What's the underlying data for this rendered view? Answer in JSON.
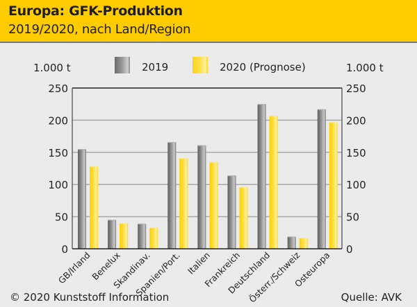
{
  "header": {
    "title": "Europa: GFK-Produktion",
    "subtitle": "2019/2020, nach Land/Region"
  },
  "colors": {
    "header_bg": "#ffcc00",
    "series_2019": "#8a8a8a",
    "series_2020": "#ffd829",
    "background": "#ebebeb"
  },
  "legend": {
    "unit_left": "1.000 t",
    "unit_right": "1.000 t",
    "items": [
      {
        "label": "2019"
      },
      {
        "label": "2020 (Prognose)"
      }
    ]
  },
  "footer": {
    "copyright": "© 2020 Kunststoff Information",
    "source": "Quelle: AVK"
  },
  "chart_data": {
    "type": "bar",
    "title": "Europa: GFK-Produktion",
    "subtitle": "2019/2020, nach Land/Region",
    "xlabel": "",
    "ylabel": "1.000 t",
    "ylabel_right": "1.000 t",
    "ylim": [
      0,
      250
    ],
    "yticks": [
      0,
      50,
      100,
      150,
      200,
      250
    ],
    "grid": true,
    "legend_position": "top",
    "categories": [
      "GB/Irland",
      "Benelux",
      "Skandinav.",
      "Spanien/Port.",
      "Italien",
      "Frankreich",
      "Deutschland",
      "Österr./Schweiz",
      "Osteuropa"
    ],
    "series": [
      {
        "name": "2019",
        "values": [
          155,
          45,
          39,
          166,
          161,
          114,
          225,
          19,
          217
        ]
      },
      {
        "name": "2020 (Prognose)",
        "values": [
          128,
          40,
          33,
          141,
          135,
          96,
          207,
          17,
          197
        ]
      }
    ]
  }
}
